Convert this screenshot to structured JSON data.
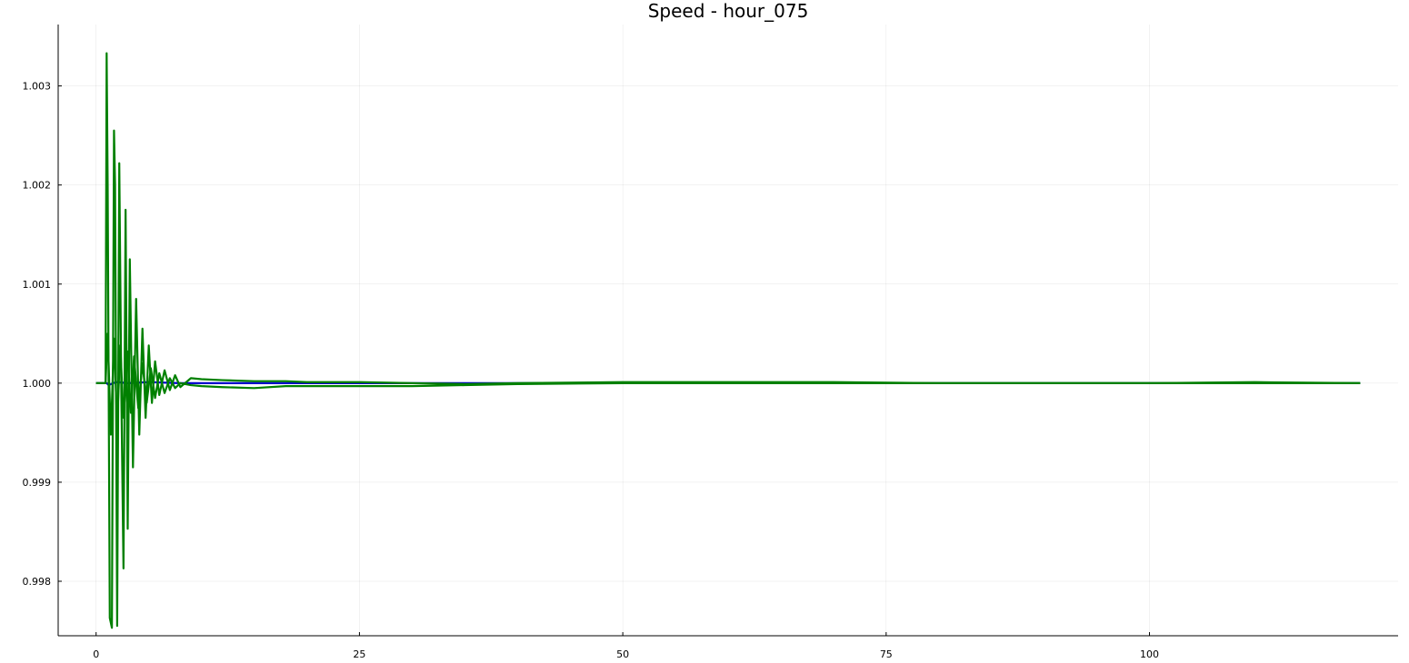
{
  "chart_data": {
    "type": "line",
    "title": "Speed - hour_075",
    "xlabel": "",
    "ylabel": "",
    "xlim": [
      -3.6,
      123.6
    ],
    "ylim": [
      0.99745,
      1.00362
    ],
    "xticks": [
      0,
      25,
      50,
      75,
      100
    ],
    "xtick_labels": [
      "0",
      "25",
      "50",
      "75",
      "100"
    ],
    "yticks": [
      0.998,
      0.999,
      1.0,
      1.001,
      1.002,
      1.003
    ],
    "ytick_labels": [
      "0.998",
      "0.999",
      "1.000",
      "1.001",
      "1.002",
      "1.003"
    ],
    "grid": true,
    "legend": "none",
    "colors": {
      "blue": "#0000cc",
      "green": "#008000"
    },
    "series": [
      {
        "color": "#0000cc",
        "x": [
          0,
          1,
          1.2,
          1.6,
          2.0,
          3,
          5,
          8,
          10,
          120
        ],
        "y": [
          1.0,
          1.0,
          0.99998,
          1.0,
          1.00001,
          1.0,
          1.00001,
          1.0,
          1.0,
          1.0
        ]
      },
      {
        "color": "#008000",
        "x": [
          0,
          0.9,
          1.0,
          1.1,
          1.3,
          1.5,
          1.7,
          1.8,
          2.0,
          2.2,
          2.4,
          2.6,
          2.8,
          3.0,
          3.2,
          3.5,
          3.8,
          4.1,
          4.4,
          4.7,
          5.0,
          5.3,
          5.6,
          6.0,
          6.5,
          7.0,
          7.5,
          8.0,
          9.0,
          10,
          12,
          15,
          18,
          20,
          25,
          30,
          35,
          40,
          50,
          60,
          70,
          80,
          90,
          100,
          110,
          120
        ],
        "y": [
          1.0,
          1.0,
          1.00333,
          1.002,
          0.99763,
          0.99753,
          1.00255,
          1.002,
          0.99755,
          1.00222,
          0.99985,
          0.99813,
          1.00175,
          0.99853,
          1.00125,
          0.99915,
          1.00085,
          0.99948,
          1.00055,
          0.99965,
          1.00038,
          0.9998,
          1.00022,
          0.99988,
          1.00013,
          0.99993,
          1.00008,
          0.99996,
          1.00005,
          1.00004,
          1.00003,
          1.00002,
          1.00002,
          1.00001,
          1.00001,
          1.0,
          0.99999,
          1.0,
          1.00001,
          1.00001,
          1.00001,
          1.0,
          1.0,
          1.0,
          1.00001,
          1.0
        ]
      },
      {
        "color": "#008000",
        "x": [
          0,
          0.9,
          1.1,
          1.4,
          1.7,
          2.0,
          2.3,
          2.6,
          3.0,
          3.3,
          3.6,
          4.0,
          4.4,
          4.8,
          5.2,
          5.6,
          6.0,
          6.5,
          7.0,
          7.5,
          8.0,
          9.0,
          10,
          12,
          15,
          18,
          20,
          25,
          30,
          35,
          40,
          50,
          60,
          70,
          80,
          90,
          100,
          110,
          120
        ],
        "y": [
          1.0,
          1.0,
          1.0005,
          0.99948,
          1.00045,
          0.99958,
          1.00038,
          0.99965,
          1.00032,
          0.9997,
          1.00027,
          0.99975,
          1.0002,
          0.9998,
          1.00015,
          0.99985,
          1.0001,
          0.9999,
          1.00005,
          0.99995,
          1.0,
          0.99998,
          0.99997,
          0.99996,
          0.99995,
          0.99997,
          0.99997,
          0.99997,
          0.99997,
          0.99998,
          0.99999,
          1.0,
          1.0,
          1.0,
          1.0,
          1.0,
          1.0,
          1.0,
          1.0
        ]
      }
    ]
  }
}
